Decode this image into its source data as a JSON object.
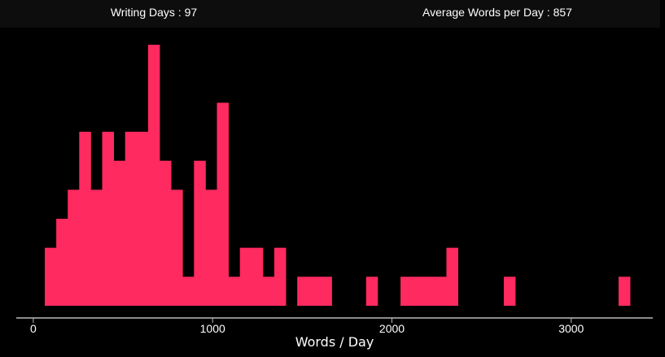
{
  "stats": {
    "writing_days_label": "Writing Days : 97",
    "average_words_label": "Average Words per Day : 857"
  },
  "colors": {
    "background": "#000000",
    "stats_bar": "#0d0d0d",
    "bar": "#ff2a5f",
    "axis": "#bbbbbb",
    "text": "#ffffff"
  },
  "chart_data": {
    "type": "bar",
    "xlabel": "Words / Day",
    "ylabel": "",
    "xlim": [
      -95,
      3455
    ],
    "ylim": [
      0,
      9
    ],
    "grid": false,
    "xticks": [
      0,
      1000,
      2000,
      3000
    ],
    "bin_width": 64,
    "bins": [
      {
        "x": 64,
        "count": 2
      },
      {
        "x": 128,
        "count": 3
      },
      {
        "x": 192,
        "count": 4
      },
      {
        "x": 256,
        "count": 6
      },
      {
        "x": 320,
        "count": 4
      },
      {
        "x": 384,
        "count": 6
      },
      {
        "x": 448,
        "count": 5
      },
      {
        "x": 512,
        "count": 6
      },
      {
        "x": 576,
        "count": 6
      },
      {
        "x": 640,
        "count": 9
      },
      {
        "x": 704,
        "count": 5
      },
      {
        "x": 768,
        "count": 4
      },
      {
        "x": 832,
        "count": 1
      },
      {
        "x": 896,
        "count": 5
      },
      {
        "x": 960,
        "count": 4
      },
      {
        "x": 1024,
        "count": 7
      },
      {
        "x": 1088,
        "count": 1
      },
      {
        "x": 1152,
        "count": 2
      },
      {
        "x": 1216,
        "count": 2
      },
      {
        "x": 1280,
        "count": 1
      },
      {
        "x": 1344,
        "count": 2
      },
      {
        "x": 1472,
        "count": 1
      },
      {
        "x": 1536,
        "count": 1
      },
      {
        "x": 1600,
        "count": 1
      },
      {
        "x": 1856,
        "count": 1
      },
      {
        "x": 2048,
        "count": 1
      },
      {
        "x": 2112,
        "count": 1
      },
      {
        "x": 2176,
        "count": 1
      },
      {
        "x": 2240,
        "count": 1
      },
      {
        "x": 2304,
        "count": 2
      },
      {
        "x": 2624,
        "count": 1
      },
      {
        "x": 3264,
        "count": 1
      }
    ]
  }
}
